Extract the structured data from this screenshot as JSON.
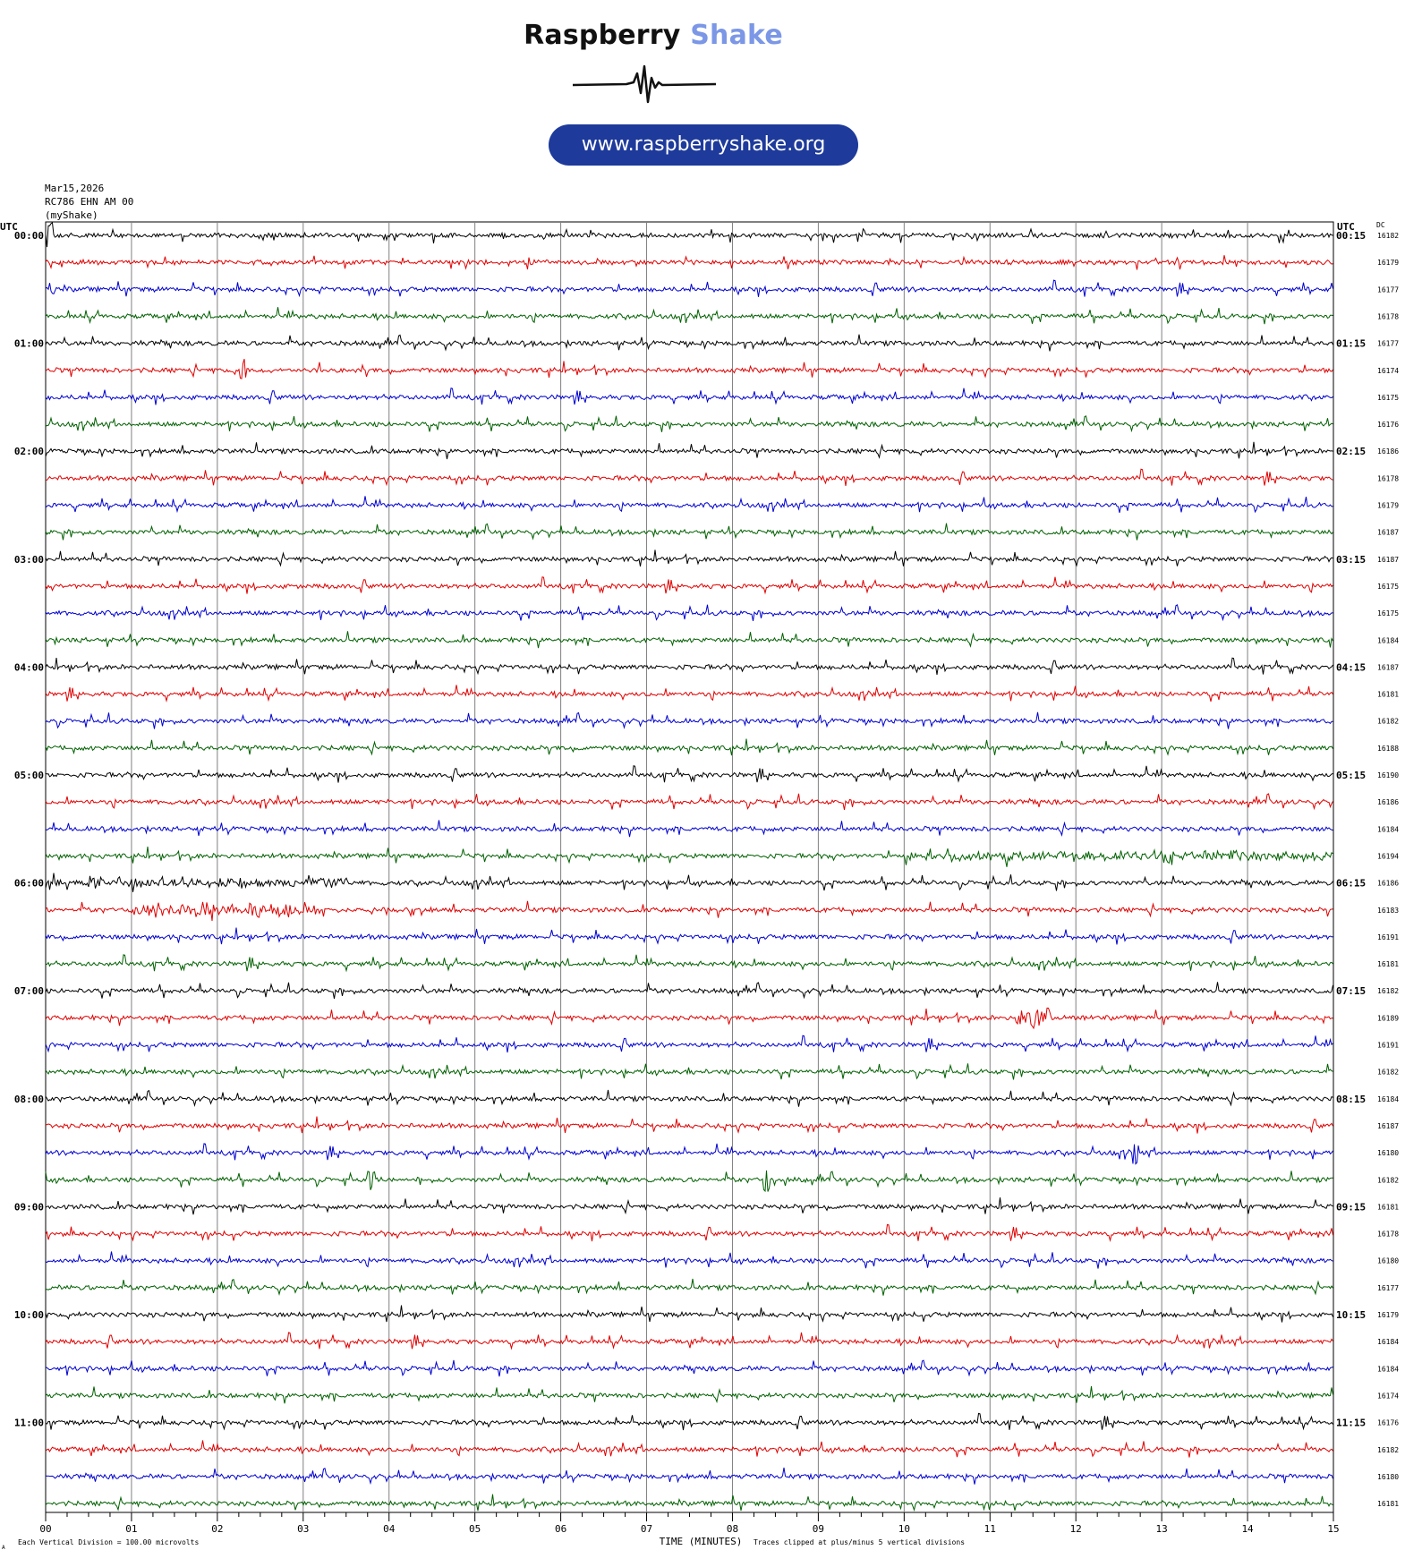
{
  "header": {
    "brand_word1": "Raspberry",
    "brand_word2": "Shake",
    "url": "www.raspberryshake.org"
  },
  "colors": {
    "trace_cycle": [
      "#000000",
      "#e00000",
      "#0000d0",
      "#006000"
    ],
    "brand_dark": "#111111",
    "brand_light": "#7b97e6",
    "url_pill": "#1e3a9a",
    "grid": "#808080"
  },
  "chart_data": {
    "type": "line",
    "title_lines": [
      "Mar15,2026",
      "RC786 EHN AM 00",
      "(myShake)"
    ],
    "left_axis_title": "UTC",
    "right_axis_title": "UTC",
    "dc_title": "DC",
    "left_hour_labels": [
      "00:00",
      "01:00",
      "02:00",
      "03:00",
      "04:00",
      "05:00",
      "06:00",
      "07:00",
      "08:00",
      "09:00",
      "10:00",
      "11:00"
    ],
    "right_hour_labels": [
      "00:15",
      "01:15",
      "02:15",
      "03:15",
      "04:15",
      "05:15",
      "06:15",
      "07:15",
      "08:15",
      "09:15",
      "10:15",
      "11:15"
    ],
    "dc_values": [
      "16182",
      "16179",
      "16177",
      "16178",
      "16177",
      "16174",
      "16175",
      "16176",
      "16186",
      "16178",
      "16179",
      "16187",
      "16187",
      "16175",
      "16175",
      "16184",
      "16187",
      "16181",
      "16182",
      "16188",
      "16190",
      "16186",
      "16184",
      "16194",
      "16186",
      "16183",
      "16191",
      "16181",
      "16182",
      "16189",
      "16191",
      "16182",
      "16184",
      "16187",
      "16180",
      "16182",
      "16181",
      "16178",
      "16180",
      "16177",
      "16179",
      "16184",
      "16184",
      "16174",
      "16176",
      "16182",
      "16180",
      "16181"
    ],
    "xlabel": "TIME (MINUTES)",
    "x_tick_labels": [
      "00",
      "01",
      "02",
      "03",
      "04",
      "05",
      "06",
      "07",
      "08",
      "09",
      "10",
      "11",
      "12",
      "13",
      "14",
      "15"
    ],
    "xlim": [
      0,
      15
    ],
    "rows_per_hour": 4,
    "minutes_per_row": 15,
    "footer_left": "Each Vertical Division =  100.00 microvolts",
    "footer_right": "Traces clipped at plus/minus 5 vertical divisions",
    "footer_mark": "A",
    "events": [
      {
        "row": 0,
        "minute": 0.05,
        "amplitude": 6
      },
      {
        "row": 5,
        "minute": 2.3,
        "amplitude": 5
      },
      {
        "row": 23,
        "minute": 10.0,
        "start": 10.0,
        "end": 15.0,
        "amplitude": 4,
        "type": "noise"
      },
      {
        "row": 24,
        "minute": 0.0,
        "start": 0.0,
        "end": 3.6,
        "amplitude": 4,
        "type": "noise"
      },
      {
        "row": 25,
        "minute": 1.0,
        "start": 1.0,
        "end": 3.2,
        "amplitude": 5,
        "type": "noise"
      },
      {
        "row": 29,
        "minute": 11.5,
        "start": 11.3,
        "end": 11.7,
        "amplitude": 9,
        "type": "burst"
      },
      {
        "row": 35,
        "minute": 8.4,
        "amplitude": 6
      },
      {
        "row": 35,
        "minute": 3.8,
        "amplitude": 5
      },
      {
        "row": 34,
        "minute": 12.7,
        "amplitude": 5
      }
    ],
    "grid": true
  }
}
